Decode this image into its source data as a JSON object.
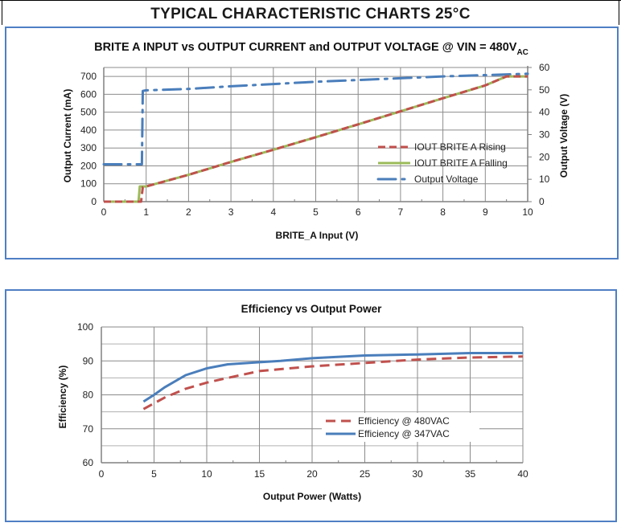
{
  "page": {
    "title": "TYPICAL CHARACTERISTIC CHARTS 25°C"
  },
  "colors": {
    "frame": "#4f7fc4",
    "rising": "#c0504d",
    "falling": "#9bbb59",
    "voltage": "#4a7ebb",
    "eff480": "#c0504d",
    "eff347": "#4a7ebb",
    "grid": "#8c8c8c"
  },
  "chart_data": [
    {
      "type": "line",
      "title": "BRITE A INPUT vs OUTPUT CURRENT and OUTPUT VOLTAGE @ VIN = 480V",
      "title_subscript": "AC",
      "xlabel": "BRITE_A Input (V)",
      "ylabel": "Output Current (mA)",
      "y2label": "Output Voltage (V)",
      "xlim": [
        0,
        10
      ],
      "ylim": [
        0,
        750
      ],
      "y2lim": [
        0,
        60
      ],
      "xticks": [
        "0",
        "1",
        "2",
        "3",
        "4",
        "5",
        "6",
        "7",
        "8",
        "9",
        "10"
      ],
      "yticks": [
        "0",
        "100",
        "200",
        "300",
        "400",
        "500",
        "600",
        "700"
      ],
      "y2ticks": [
        "0",
        "10",
        "20",
        "30",
        "40",
        "50",
        "60"
      ],
      "grid": true,
      "legend_position": "center-right",
      "series": [
        {
          "name": "IOUT BRITE A  Rising",
          "axis": "left",
          "style": "dashed",
          "x": [
            0,
            0.88,
            0.9,
            0.92,
            1.0,
            2,
            3,
            4,
            5,
            6,
            7,
            8,
            9,
            9.5,
            10
          ],
          "y": [
            0,
            0,
            40,
            80,
            85,
            150,
            222,
            290,
            360,
            432,
            505,
            578,
            650,
            700,
            700
          ]
        },
        {
          "name": "IOUT BRITE A Falling",
          "axis": "left",
          "style": "solid",
          "x": [
            0,
            0.82,
            0.85,
            1.0,
            2,
            3,
            4,
            5,
            6,
            7,
            8,
            9,
            9.5,
            10
          ],
          "y": [
            0,
            0,
            85,
            85,
            150,
            222,
            290,
            360,
            432,
            505,
            578,
            650,
            700,
            700
          ]
        },
        {
          "name": "Output Voltage",
          "axis": "right",
          "style": "dash-dot",
          "x": [
            0,
            0.8,
            0.9,
            0.92,
            1,
            2,
            3,
            4,
            5,
            6,
            7,
            8,
            9,
            10
          ],
          "y": [
            16.7,
            16.7,
            16.7,
            49.5,
            49.8,
            50.4,
            51.6,
            52.6,
            53.6,
            54.4,
            55.2,
            56.0,
            56.6,
            57.2
          ]
        }
      ]
    },
    {
      "type": "line",
      "title": "Efficiency vs Output Power",
      "xlabel": "Output Power (Watts)",
      "ylabel": "Efficiency (%)",
      "xlim": [
        0,
        40
      ],
      "ylim": [
        60,
        100
      ],
      "xticks": [
        "0",
        "5",
        "10",
        "15",
        "20",
        "25",
        "30",
        "35",
        "40"
      ],
      "yticks": [
        "60",
        "70",
        "80",
        "90",
        "100"
      ],
      "grid": true,
      "legend_position": "bottom-right",
      "series": [
        {
          "name": "Efficiency @ 480VAC",
          "style": "dashed",
          "x": [
            4,
            5,
            6,
            8,
            10,
            12,
            15,
            20,
            25,
            30,
            35,
            40
          ],
          "y": [
            75.8,
            77.5,
            79.2,
            81.8,
            83.6,
            85.0,
            87.0,
            88.4,
            89.4,
            90.4,
            91.0,
            91.3
          ]
        },
        {
          "name": "Efficiency @ 347VAC",
          "style": "solid",
          "x": [
            4,
            5,
            6,
            8,
            10,
            12,
            15,
            17,
            20,
            25,
            30,
            35,
            40
          ],
          "y": [
            78.0,
            80.0,
            82.2,
            85.8,
            87.8,
            89.0,
            89.6,
            90.0,
            90.8,
            91.6,
            91.9,
            92.3,
            92.3
          ]
        }
      ]
    }
  ]
}
